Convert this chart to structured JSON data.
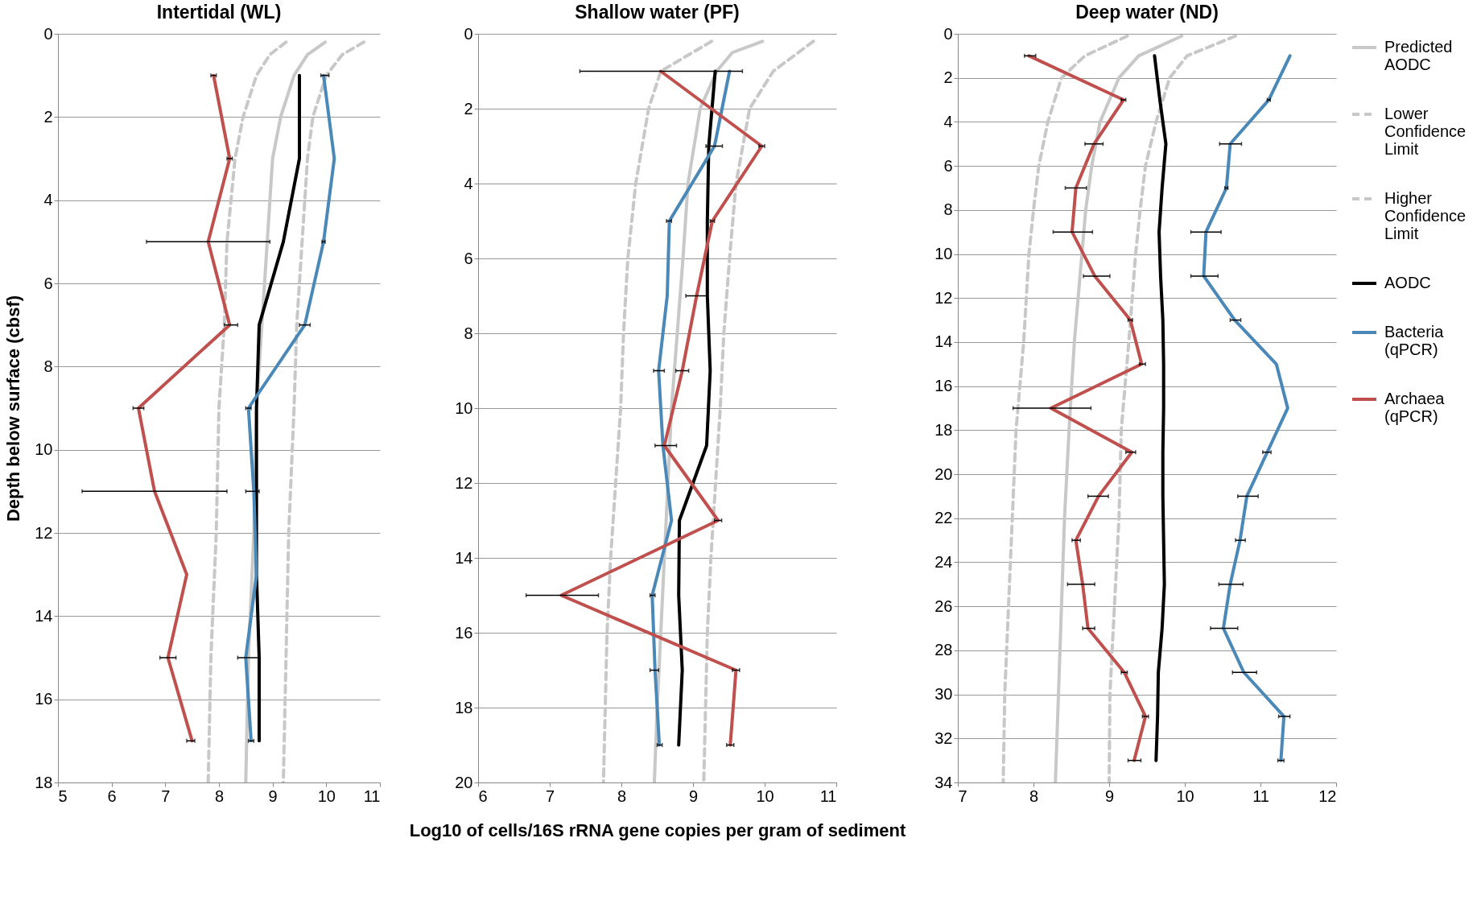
{
  "chart_data": [
    {
      "type": "line",
      "title": "Intertidal (WL)",
      "ylabel": "Depth below surface (cbsf)",
      "xlim": [
        5,
        11
      ],
      "xticks": [
        5,
        6,
        7,
        8,
        9,
        10,
        11
      ],
      "ylim": [
        18,
        0
      ],
      "yticks": [
        0,
        2,
        4,
        6,
        8,
        10,
        12,
        14,
        16,
        18
      ],
      "grid": "y",
      "series": [
        {
          "color": "#c8c8c8",
          "line_style": "solid",
          "x": [
            9.98,
            9.65,
            9.4,
            9.15,
            9.0,
            8.9,
            8.8,
            8.7,
            8.65,
            8.55,
            8.5
          ],
          "values": [
            0.2,
            0.5,
            1,
            2,
            3,
            5,
            7,
            9,
            12,
            15,
            18
          ]
        },
        {
          "color": "#c8c8c8",
          "line_style": "dashed",
          "x": [
            9.25,
            8.95,
            8.7,
            8.45,
            8.3,
            8.15,
            8.1,
            8.0,
            7.95,
            7.85,
            7.8
          ],
          "values": [
            0.2,
            0.5,
            1,
            2,
            3,
            5,
            7,
            9,
            12,
            15,
            18
          ]
        },
        {
          "color": "#c8c8c8",
          "line_style": "dashed",
          "x": [
            10.7,
            10.3,
            10.0,
            9.75,
            9.65,
            9.55,
            9.45,
            9.4,
            9.3,
            9.25,
            9.2
          ],
          "values": [
            0.2,
            0.5,
            1,
            2,
            3,
            5,
            7,
            9,
            12,
            15,
            18
          ]
        },
        {
          "color": "#000000",
          "line_style": "solid",
          "x": [
            9.5,
            9.5,
            9.2,
            8.75,
            8.7,
            8.7,
            8.7,
            8.75,
            8.75
          ],
          "values": [
            1,
            3,
            5,
            7,
            9,
            11,
            13,
            15,
            17
          ]
        },
        {
          "color": "#4a88b8",
          "line_style": "solid",
          "x": [
            9.95,
            10.15,
            9.95,
            9.6,
            8.55,
            8.65,
            8.7,
            8.5,
            8.6
          ],
          "values": [
            1,
            3,
            5,
            7,
            9,
            11,
            13,
            15,
            17
          ],
          "xerrors": [
            [
              9.9,
              10.05
            ],
            null,
            [
              9.92,
              9.98
            ],
            [
              9.5,
              9.7
            ],
            [
              8.5,
              8.6
            ],
            [
              8.5,
              8.75
            ],
            null,
            [
              8.35,
              8.75
            ],
            [
              8.55,
              8.65
            ]
          ]
        },
        {
          "color": "#c0504d",
          "line_style": "solid",
          "x": [
            7.9,
            8.2,
            7.8,
            8.2,
            6.5,
            6.8,
            7.4,
            7.05,
            7.5
          ],
          "values": [
            1,
            3,
            5,
            7,
            9,
            11,
            13,
            15,
            17
          ],
          "xerrors": [
            [
              7.85,
              7.95
            ],
            [
              8.15,
              8.25
            ],
            [
              6.65,
              8.95
            ],
            [
              8.1,
              8.35
            ],
            [
              6.4,
              6.6
            ],
            [
              5.45,
              8.15
            ],
            null,
            [
              6.9,
              7.2
            ],
            [
              7.4,
              7.55
            ]
          ]
        }
      ]
    },
    {
      "type": "line",
      "title": "Shallow water (PF)",
      "xlabel": "Log10 of cells/16S rRNA gene copies per gram of sediment",
      "xlim": [
        6,
        11
      ],
      "xticks": [
        6,
        7,
        8,
        9,
        10,
        11
      ],
      "ylim": [
        20,
        0
      ],
      "yticks": [
        0,
        2,
        4,
        6,
        8,
        10,
        12,
        14,
        16,
        18,
        20
      ],
      "grid": "y",
      "series": [
        {
          "color": "#c8c8c8",
          "line_style": "solid",
          "x": [
            9.97,
            9.55,
            9.33,
            9.1,
            8.93,
            8.86,
            8.78,
            8.7,
            8.65,
            8.6,
            8.55,
            8.5,
            8.46
          ],
          "values": [
            0.2,
            0.5,
            1,
            2,
            4,
            6,
            8,
            10,
            12,
            14,
            16,
            18,
            20
          ]
        },
        {
          "color": "#c8c8c8",
          "line_style": "dashed",
          "x": [
            9.26,
            8.55,
            8.38,
            8.2,
            8.09,
            8.03,
            7.99,
            7.85,
            7.8,
            7.75
          ],
          "values": [
            0.2,
            1,
            2,
            4,
            6,
            8,
            10,
            14,
            16,
            20
          ]
        },
        {
          "color": "#c8c8c8",
          "line_style": "dashed",
          "x": [
            10.68,
            10.12,
            9.79,
            9.6,
            9.51,
            9.43,
            9.38,
            9.25,
            9.2,
            9.15
          ],
          "values": [
            0.2,
            1,
            2,
            4,
            6,
            8,
            10,
            14,
            16,
            20
          ]
        },
        {
          "color": "#000000",
          "line_style": "solid",
          "x": [
            9.31,
            9.22,
            9.2,
            9.2,
            9.24,
            9.19,
            8.81,
            8.8,
            8.85,
            8.8
          ],
          "values": [
            1,
            3,
            5,
            7,
            9,
            11,
            13,
            15,
            17,
            19
          ]
        },
        {
          "color": "#4a88b8",
          "line_style": "solid",
          "x": [
            9.51,
            9.3,
            8.67,
            8.64,
            8.52,
            8.58,
            8.7,
            8.43,
            8.47,
            8.53
          ],
          "values": [
            1,
            3,
            5,
            7,
            9,
            11,
            13,
            15,
            17,
            19
          ],
          "xerrors": [
            null,
            [
              9.18,
              9.41
            ],
            [
              8.63,
              8.7
            ],
            null,
            [
              8.45,
              8.6
            ],
            null,
            null,
            [
              8.4,
              8.47
            ],
            [
              8.4,
              8.52
            ],
            [
              8.5,
              8.57
            ]
          ]
        },
        {
          "color": "#c0504d",
          "line_style": "solid",
          "x": [
            8.55,
            9.96,
            9.27,
            9.05,
            8.85,
            8.6,
            9.35,
            7.16,
            9.6,
            9.52
          ],
          "values": [
            1,
            3,
            5,
            7,
            9,
            11,
            13,
            15,
            17,
            19
          ],
          "xerrors": [
            [
              7.42,
              9.69
            ],
            [
              9.92,
              10.0
            ],
            [
              9.24,
              9.3
            ],
            [
              8.9,
              9.19
            ],
            [
              8.76,
              8.94
            ],
            [
              8.47,
              8.77
            ],
            [
              9.3,
              9.4
            ],
            [
              6.67,
              7.68
            ],
            [
              9.55,
              9.65
            ],
            [
              9.47,
              9.57
            ]
          ]
        }
      ]
    },
    {
      "type": "line",
      "title": "Deep water (ND)",
      "xlim": [
        7,
        12
      ],
      "xticks": [
        7,
        8,
        9,
        10,
        11,
        12
      ],
      "ylim": [
        34,
        0
      ],
      "yticks": [
        0,
        2,
        4,
        6,
        8,
        10,
        12,
        14,
        16,
        18,
        20,
        22,
        24,
        26,
        28,
        30,
        32,
        34
      ],
      "grid": "y",
      "legend": "right",
      "series": [
        {
          "name": "Predicted AODC",
          "color": "#c8c8c8",
          "line_style": "solid",
          "x": [
            9.96,
            9.39,
            9.13,
            8.88,
            8.77,
            8.69,
            8.64,
            8.54,
            8.47,
            8.41,
            8.37,
            8.33,
            8.29
          ],
          "values": [
            0.1,
            1,
            2,
            4,
            6,
            8,
            10,
            14,
            18,
            22,
            26,
            30,
            34
          ]
        },
        {
          "name": "Lower Confidence Limit",
          "color": "#c8c8c8",
          "line_style": "dashed",
          "x": [
            9.24,
            8.68,
            8.37,
            8.19,
            8.07,
            8.0,
            7.94,
            7.87,
            7.77,
            7.72,
            7.67,
            7.62,
            7.6
          ],
          "values": [
            0.1,
            1,
            2,
            4,
            6,
            8,
            10,
            14,
            18,
            22,
            26,
            30,
            34
          ]
        },
        {
          "name": "Higher Confidence Limit",
          "color": "#c8c8c8",
          "line_style": "dashed",
          "x": [
            10.67,
            10.03,
            9.8,
            9.62,
            9.48,
            9.41,
            9.35,
            9.26,
            9.16,
            9.13,
            9.07,
            9.01,
            9.0
          ],
          "values": [
            0.1,
            1,
            2,
            4,
            6,
            8,
            10,
            14,
            18,
            22,
            26,
            30,
            34
          ]
        },
        {
          "name": "AODC",
          "color": "#000000",
          "line_style": "solid",
          "x": [
            9.6,
            9.67,
            9.75,
            9.7,
            9.66,
            9.68,
            9.71,
            9.72,
            9.72,
            9.71,
            9.71,
            9.72,
            9.73,
            9.7,
            9.65,
            9.64,
            9.62
          ],
          "values": [
            1,
            3,
            5,
            7,
            9,
            11,
            13,
            15,
            17,
            19,
            21,
            23,
            25,
            27,
            29,
            31,
            33
          ]
        },
        {
          "name": "Bacteria (qPCR)",
          "color": "#4a88b8",
          "line_style": "solid",
          "x": [
            11.39,
            11.11,
            10.6,
            10.55,
            10.28,
            10.25,
            10.66,
            11.21,
            11.36,
            11.09,
            10.82,
            10.73,
            10.6,
            10.51,
            10.78,
            11.31,
            11.27
          ],
          "values": [
            1,
            3,
            5,
            7,
            9,
            11,
            13,
            15,
            17,
            19,
            21,
            23,
            25,
            27,
            29,
            31,
            33
          ],
          "xerrors": [
            null,
            [
              11.09,
              11.13
            ],
            [
              10.46,
              10.75
            ],
            [
              10.53,
              10.57
            ],
            [
              10.08,
              10.48
            ],
            [
              10.08,
              10.44
            ],
            [
              10.6,
              10.74
            ],
            null,
            null,
            [
              11.03,
              11.14
            ],
            [
              10.7,
              10.97
            ],
            [
              10.67,
              10.8
            ],
            [
              10.45,
              10.77
            ],
            [
              10.34,
              10.7
            ],
            [
              10.63,
              10.95
            ],
            [
              11.24,
              11.39
            ],
            [
              11.23,
              11.31
            ]
          ]
        },
        {
          "name": "Archaea (qPCR)",
          "color": "#c0504d",
          "line_style": "solid",
          "x": [
            7.94,
            9.19,
            8.8,
            8.56,
            8.51,
            8.81,
            9.28,
            9.43,
            8.23,
            9.3,
            8.86,
            8.56,
            8.65,
            8.72,
            9.2,
            9.48,
            9.33
          ],
          "values": [
            1,
            3,
            5,
            7,
            9,
            11,
            13,
            15,
            17,
            19,
            21,
            23,
            25,
            27,
            29,
            31,
            33
          ],
          "xerrors": [
            [
              7.88,
              8.03
            ],
            [
              9.16,
              9.22
            ],
            [
              8.68,
              8.92
            ],
            [
              8.42,
              8.7
            ],
            [
              8.26,
              8.78
            ],
            [
              8.66,
              9.01
            ],
            [
              9.25,
              9.31
            ],
            [
              9.4,
              9.48
            ],
            [
              7.73,
              8.76
            ],
            [
              9.22,
              9.35
            ],
            [
              8.72,
              8.99
            ],
            [
              8.51,
              8.62
            ],
            [
              8.45,
              8.81
            ],
            [
              8.65,
              8.81
            ],
            [
              9.16,
              9.24
            ],
            [
              9.44,
              9.52
            ],
            [
              9.25,
              9.42
            ]
          ]
        }
      ]
    }
  ]
}
